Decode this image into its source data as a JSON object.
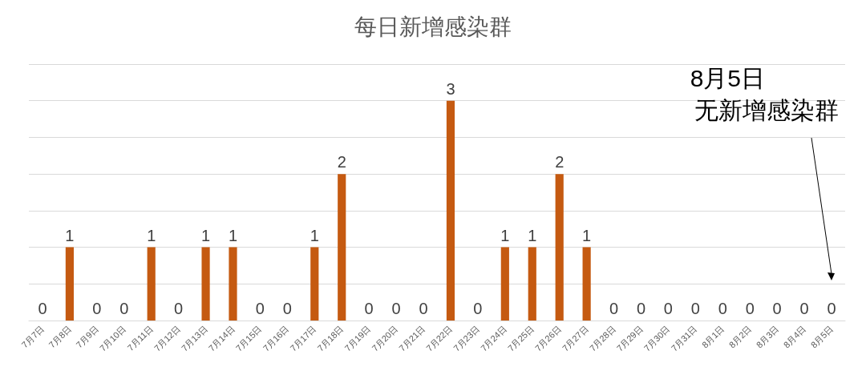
{
  "chart_data": {
    "type": "bar",
    "title": "每日新增感染群",
    "categories": [
      "7月7日",
      "7月8日",
      "7月9日",
      "7月10日",
      "7月11日",
      "7月12日",
      "7月13日",
      "7月14日",
      "7月15日",
      "7月16日",
      "7月17日",
      "7月18日",
      "7月19日",
      "7月20日",
      "7月21日",
      "7月22日",
      "7月23日",
      "7月24日",
      "7月25日",
      "7月26日",
      "7月27日",
      "7月28日",
      "7月29日",
      "7月30日",
      "7月31日",
      "8月1日",
      "8月2日",
      "8月3日",
      "8月4日",
      "8月5日"
    ],
    "values": [
      0,
      1,
      0,
      0,
      1,
      0,
      1,
      1,
      0,
      0,
      1,
      2,
      0,
      0,
      0,
      3,
      0,
      1,
      1,
      2,
      1,
      0,
      0,
      0,
      0,
      0,
      0,
      0,
      0,
      0
    ],
    "color": "#c55a11",
    "ylim": [
      0,
      3.5
    ],
    "yticks": [
      {
        "value": 0,
        "label": null
      },
      {
        "value": 0.5,
        "label": null
      },
      {
        "value": 1,
        "label": null
      },
      {
        "value": 1.5,
        "label": null
      },
      {
        "value": 2,
        "label": null
      },
      {
        "value": 2.5,
        "label": null
      },
      {
        "value": 3,
        "label": null
      },
      {
        "value": 3.5,
        "label": null
      }
    ],
    "tick_labels": "x",
    "grid": "y",
    "data_labels": true,
    "annotations": [
      "8月5日",
      "无新增感染群"
    ]
  }
}
